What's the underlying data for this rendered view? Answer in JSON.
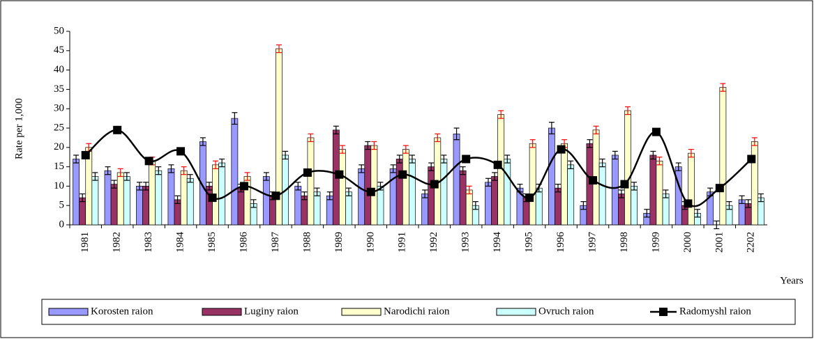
{
  "chart_data": {
    "type": "bar",
    "y_label": "Rate per 1,000",
    "x_label": "Years",
    "categories": [
      "1981",
      "1982",
      "1983",
      "1984",
      "1985",
      "1986",
      "1987",
      "1988",
      "1989",
      "1990",
      "1991",
      "1992",
      "1993",
      "1994",
      "1995",
      "1996",
      "1997",
      "1998",
      "1999",
      "2000",
      "2001",
      "2202"
    ],
    "ylim": [
      0,
      50
    ],
    "yticks": [
      0,
      5,
      10,
      15,
      20,
      25,
      30,
      35,
      40,
      45,
      50
    ],
    "series": [
      {
        "name": "Korosten raion",
        "color": "#9999ff",
        "error_color": "#000000",
        "values": [
          17,
          14,
          10,
          14.5,
          21.5,
          27.5,
          12.5,
          10,
          7.5,
          14.5,
          14.5,
          8,
          23.5,
          11,
          9.5,
          25,
          5,
          18,
          3,
          15,
          8.5,
          6.5
        ],
        "errors": [
          1,
          1,
          1,
          1,
          1,
          1.5,
          1,
          1,
          1,
          1,
          1,
          1,
          1.5,
          1,
          1,
          1.5,
          1,
          1,
          1,
          1,
          1,
          1
        ]
      },
      {
        "name": "Luginy raion",
        "color": "#993366",
        "error_color": "#000000",
        "values": [
          7,
          10.5,
          10,
          6.5,
          10,
          9.5,
          7.5,
          7.5,
          24.5,
          20.5,
          17,
          15,
          14,
          12.5,
          7,
          9.5,
          21,
          8,
          18,
          5,
          0,
          5.5
        ],
        "errors": [
          1,
          1,
          1,
          1,
          1,
          1,
          1,
          1,
          1,
          1,
          1,
          1,
          1,
          1,
          1,
          1,
          1,
          1,
          1,
          1,
          1,
          1
        ]
      },
      {
        "name": "Narodichi raion",
        "color": "#ffffcc",
        "error_color": "#ff0000",
        "values": [
          20,
          13.5,
          16.5,
          14,
          15.5,
          12.5,
          45.5,
          22.5,
          19.5,
          20.5,
          19.5,
          22.5,
          9,
          28.5,
          21,
          21,
          24.5,
          29.5,
          16.5,
          18.5,
          35.5,
          21.5
        ],
        "errors": [
          1,
          1,
          1,
          1,
          1,
          1,
          1,
          1,
          1,
          1,
          1,
          1,
          1,
          1,
          1,
          1,
          1,
          1,
          1,
          1,
          1,
          1
        ]
      },
      {
        "name": "Ovruch raion",
        "color": "#ccffff",
        "error_color": "#000000",
        "values": [
          12.5,
          12.5,
          14,
          12,
          16,
          5.5,
          18,
          8.5,
          8.5,
          10,
          17,
          17,
          5,
          17,
          9.5,
          15.5,
          16,
          10,
          8,
          3,
          5,
          7
        ],
        "errors": [
          1,
          1,
          1,
          1,
          1,
          1,
          1,
          1,
          1,
          1,
          1,
          1,
          1,
          1,
          1,
          1,
          1,
          1,
          1,
          1,
          1,
          1
        ]
      },
      {
        "name": "Radomyshl raion",
        "type": "line",
        "color": "#000000",
        "values": [
          18,
          24.5,
          16.5,
          19,
          7,
          10,
          7.5,
          13.5,
          13,
          8.5,
          13,
          10.5,
          17,
          15.5,
          7,
          19.5,
          11.5,
          10.5,
          24,
          5.5,
          9.5,
          17
        ]
      }
    ]
  }
}
